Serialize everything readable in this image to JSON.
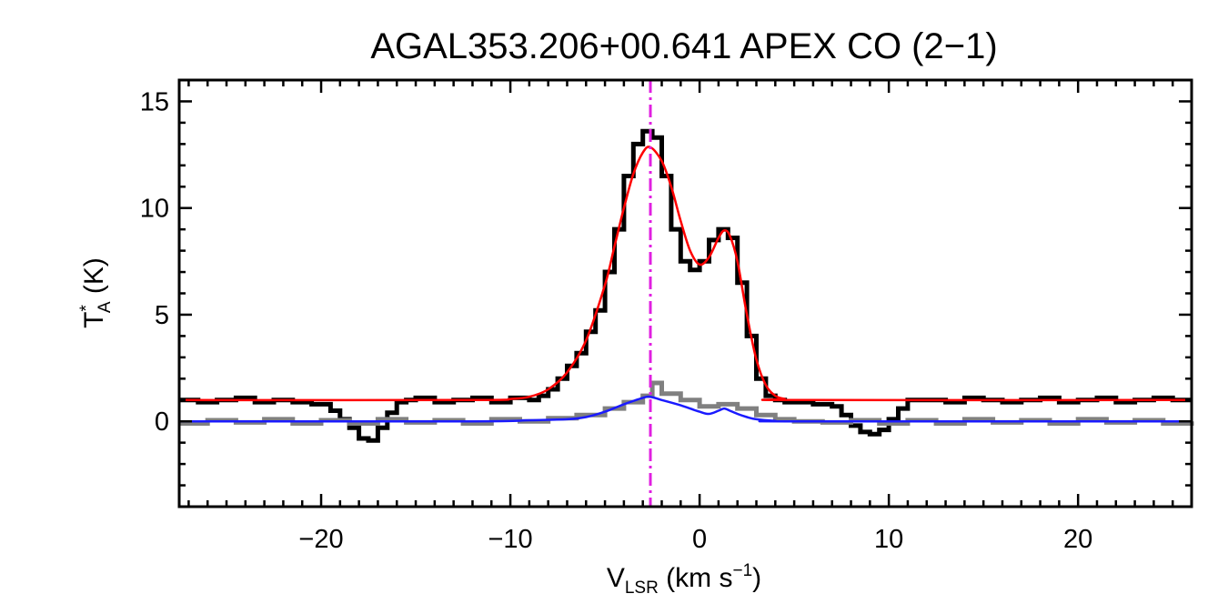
{
  "chart_data": {
    "type": "line",
    "title": "AGAL353.206+00.641   APEX CO (2−1)",
    "xlabel": {
      "main": "V",
      "sub": "LSR",
      "rest": " (km s",
      "sup": "−1",
      "close": ")"
    },
    "ylabel": {
      "main": "T",
      "sup": "*",
      "sub": "A",
      "rest": " (K)"
    },
    "xlim": [
      -27.5,
      26
    ],
    "ylim": [
      -4,
      16
    ],
    "xticks": [
      -20,
      -10,
      0,
      10,
      20
    ],
    "xtick_labels": [
      "−20",
      "−10",
      "0",
      "10",
      "20"
    ],
    "yticks": [
      0,
      5,
      10,
      15
    ],
    "ytick_labels": [
      "0",
      "5",
      "10",
      "15"
    ],
    "vline": {
      "x": -2.6,
      "color": "#e020e0",
      "style": "dash-dot"
    },
    "series": [
      {
        "style": "step",
        "color": "#000000",
        "x": [
          -27.5,
          -26.5,
          -25.5,
          -24.5,
          -23.5,
          -22.5,
          -21.5,
          -20.5,
          -19.5,
          -19,
          -18.5,
          -18,
          -17.5,
          -17,
          -16.5,
          -16,
          -15.5,
          -15,
          -14,
          -13,
          -12,
          -11,
          -10,
          -9,
          -8.5,
          -8,
          -7.5,
          -7,
          -6.5,
          -6,
          -5.5,
          -5,
          -4.5,
          -4,
          -3.5,
          -3,
          -2.5,
          -2,
          -1.5,
          -1,
          -0.5,
          0,
          0.5,
          1,
          1.5,
          2,
          2.5,
          3,
          3.5,
          4,
          4.5,
          5,
          6,
          7,
          7.5,
          8,
          8.5,
          9,
          9.5,
          10,
          10.5,
          11,
          12,
          13,
          14,
          15,
          16,
          17,
          18,
          19,
          20,
          21,
          22,
          23,
          24,
          25,
          26
        ],
        "y": [
          1.0,
          0.9,
          1.0,
          1.1,
          0.9,
          1.0,
          0.9,
          0.8,
          0.5,
          0.1,
          -0.3,
          -0.8,
          -0.9,
          -0.3,
          0.4,
          0.9,
          1.0,
          1.1,
          0.9,
          1.0,
          1.1,
          0.9,
          1.1,
          1.0,
          1.2,
          1.5,
          2.0,
          2.6,
          3.2,
          4.2,
          5.2,
          7.0,
          9.0,
          11.5,
          13.0,
          13.6,
          13.3,
          11.5,
          9.0,
          7.5,
          7.1,
          7.5,
          8.5,
          9.0,
          8.6,
          6.5,
          4.0,
          2.0,
          1.2,
          1.0,
          0.9,
          0.9,
          0.8,
          0.7,
          0.3,
          -0.2,
          -0.5,
          -0.6,
          -0.4,
          0.1,
          0.6,
          1.0,
          1.0,
          0.9,
          1.1,
          1.0,
          0.9,
          1.0,
          1.1,
          0.9,
          1.0,
          1.1,
          0.9,
          1.0,
          1.1,
          1.0,
          1.0
        ]
      },
      {
        "style": "step",
        "color": "#808080",
        "x": [
          -27.5,
          -26,
          -24.5,
          -23,
          -21.5,
          -20,
          -18.5,
          -17,
          -15.5,
          -14,
          -12.5,
          -11,
          -9.5,
          -8,
          -6.5,
          -5,
          -4,
          -3,
          -2.5,
          -2,
          -1,
          0,
          1,
          2,
          3,
          4,
          5,
          6.5,
          8,
          9.5,
          11,
          12.5,
          14,
          15.5,
          17,
          18.5,
          20,
          21.5,
          23,
          24.5,
          26
        ],
        "y": [
          -0.1,
          0.05,
          -0.05,
          0.1,
          -0.1,
          0.05,
          -0.1,
          0.1,
          -0.05,
          0.05,
          -0.1,
          0.1,
          0.0,
          0.15,
          0.3,
          0.6,
          0.9,
          1.2,
          1.8,
          1.3,
          1.0,
          0.7,
          0.8,
          0.6,
          0.3,
          0.1,
          0.0,
          -0.05,
          0.05,
          -0.1,
          0.05,
          -0.1,
          0.1,
          -0.05,
          0.05,
          -0.1,
          0.1,
          -0.05,
          0.05,
          -0.1,
          0.0
        ]
      },
      {
        "style": "smooth",
        "color": "#ff0000",
        "x": [
          -27.5,
          -12,
          -10,
          -9,
          -8,
          -7,
          -6,
          -5,
          -4.5,
          -4,
          -3.5,
          -3,
          -2.6,
          -2,
          -1.5,
          -1,
          -0.5,
          0,
          0.5,
          1,
          1.3,
          1.6,
          2,
          2.5,
          3,
          3.5,
          4,
          4.5,
          5,
          26
        ],
        "y": [
          1.0,
          1.0,
          1.05,
          1.15,
          1.5,
          2.3,
          3.8,
          6.4,
          8.2,
          10.0,
          11.6,
          12.6,
          12.85,
          12.2,
          11.0,
          9.4,
          8.0,
          7.35,
          7.7,
          8.6,
          8.95,
          8.7,
          7.5,
          5.0,
          2.9,
          1.7,
          1.2,
          1.05,
          1.0,
          1.0
        ]
      },
      {
        "style": "smooth",
        "color": "#1a1aff",
        "x": [
          -27.5,
          -12,
          -9,
          -7,
          -6,
          -5,
          -4,
          -3,
          -2.6,
          -2,
          -1,
          0,
          0.5,
          1,
          1.3,
          1.6,
          2,
          2.5,
          3,
          4,
          5,
          26
        ],
        "y": [
          0.0,
          0.0,
          0.05,
          0.1,
          0.2,
          0.45,
          0.8,
          1.1,
          1.15,
          1.0,
          0.75,
          0.45,
          0.35,
          0.5,
          0.6,
          0.5,
          0.35,
          0.2,
          0.1,
          0.02,
          0.0,
          0.0
        ]
      }
    ]
  }
}
